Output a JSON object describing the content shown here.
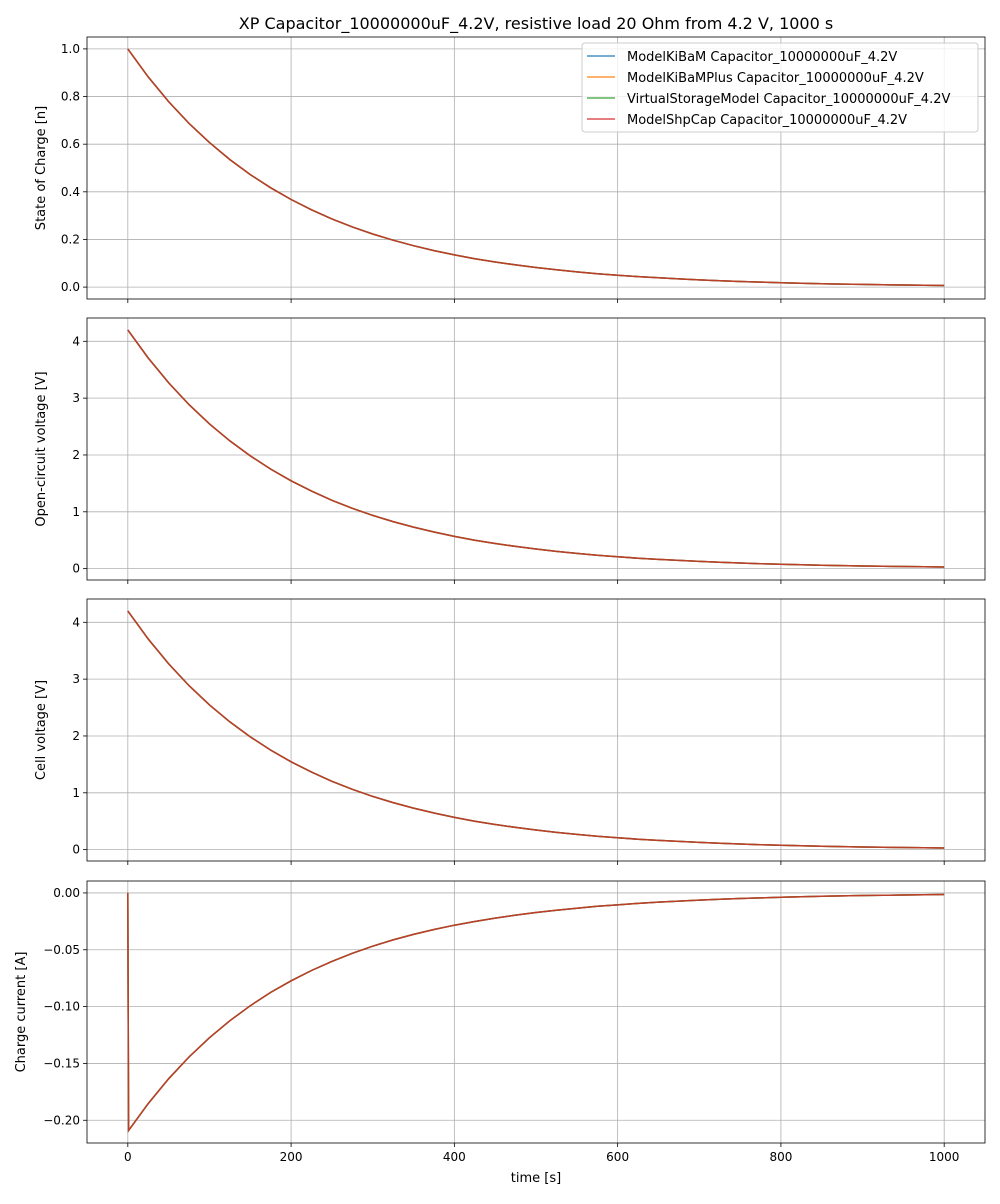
{
  "chart_data": {
    "type": "line",
    "title": "XP Capacitor_10000000uF_4.2V, resistive load 20 Ohm from 4.2 V, 1000 s",
    "xlabel": "time [s]",
    "xlim": [
      -50,
      1050
    ],
    "xticks": [
      0,
      200,
      400,
      600,
      800,
      1000
    ],
    "xtick_labels": [
      "0",
      "200",
      "400",
      "600",
      "800",
      "1000"
    ],
    "grid": true,
    "legend": {
      "placement": "top-right",
      "entries": [
        {
          "name": "ModelKiBaM Capacitor_10000000uF_4.2V",
          "color": "#1f77b4"
        },
        {
          "name": "ModelKiBaMPlus Capacitor_10000000uF_4.2V",
          "color": "#ff7f0e"
        },
        {
          "name": "VirtualStorageModel Capacitor_10000000uF_4.2V",
          "color": "#2ca02c"
        },
        {
          "name": "ModelShpCap Capacitor_10000000uF_4.2V",
          "color": "#d62728"
        }
      ]
    },
    "x": [
      0,
      25,
      50,
      75,
      100,
      125,
      150,
      175,
      200,
      225,
      250,
      275,
      300,
      325,
      350,
      375,
      400,
      425,
      450,
      475,
      500,
      525,
      550,
      575,
      600,
      625,
      650,
      675,
      700,
      725,
      750,
      775,
      800,
      825,
      850,
      875,
      900,
      925,
      950,
      975,
      1000
    ],
    "panels": [
      {
        "ylabel": "State of Charge [n]",
        "ylim": [
          -0.05,
          1.05
        ],
        "yticks": [
          0,
          0.2,
          0.4,
          0.6,
          0.8,
          1.0
        ],
        "ytick_labels": [
          "0.0",
          "0.2",
          "0.4",
          "0.6",
          "0.8",
          "1.0"
        ],
        "values": [
          1.0,
          0.8825,
          0.7788,
          0.6873,
          0.6065,
          0.5353,
          0.4724,
          0.4169,
          0.3679,
          0.3247,
          0.2865,
          0.2528,
          0.2231,
          0.1969,
          0.1738,
          0.1534,
          0.1353,
          0.1194,
          0.1054,
          0.093,
          0.0821,
          0.0724,
          0.0639,
          0.0564,
          0.0498,
          0.0439,
          0.0388,
          0.0342,
          0.0302,
          0.0267,
          0.0235,
          0.0208,
          0.0183,
          0.0162,
          0.0143,
          0.0126,
          0.0111,
          0.0098,
          0.0087,
          0.0076,
          0.0067
        ]
      },
      {
        "ylabel": "Open-circuit voltage [V]",
        "ylim": [
          -0.2,
          4.41
        ],
        "yticks": [
          0,
          1,
          2,
          3,
          4
        ],
        "ytick_labels": [
          "0",
          "1",
          "2",
          "3",
          "4"
        ],
        "values": [
          4.2,
          3.707,
          3.271,
          2.887,
          2.547,
          2.248,
          1.984,
          1.751,
          1.545,
          1.364,
          1.203,
          1.062,
          0.937,
          0.827,
          0.73,
          0.644,
          0.568,
          0.501,
          0.443,
          0.391,
          0.345,
          0.304,
          0.268,
          0.237,
          0.209,
          0.184,
          0.163,
          0.144,
          0.127,
          0.112,
          0.099,
          0.087,
          0.077,
          0.068,
          0.06,
          0.053,
          0.047,
          0.041,
          0.037,
          0.032,
          0.028
        ]
      },
      {
        "ylabel": "Cell voltage [V]",
        "ylim": [
          -0.2,
          4.41
        ],
        "yticks": [
          0,
          1,
          2,
          3,
          4
        ],
        "ytick_labels": [
          "0",
          "1",
          "2",
          "3",
          "4"
        ],
        "values": [
          4.2,
          3.707,
          3.271,
          2.887,
          2.547,
          2.248,
          1.984,
          1.751,
          1.545,
          1.364,
          1.203,
          1.062,
          0.937,
          0.827,
          0.73,
          0.644,
          0.568,
          0.501,
          0.443,
          0.391,
          0.345,
          0.304,
          0.268,
          0.237,
          0.209,
          0.184,
          0.163,
          0.144,
          0.127,
          0.112,
          0.099,
          0.087,
          0.077,
          0.068,
          0.06,
          0.053,
          0.047,
          0.041,
          0.037,
          0.032,
          0.028
        ]
      },
      {
        "ylabel": "Charge current [A]",
        "ylim": [
          -0.22,
          0.0105
        ],
        "yticks": [
          0,
          -0.05,
          -0.1,
          -0.15,
          -0.2
        ],
        "ytick_labels": [
          "0.00",
          "−0.05",
          "−0.10",
          "−0.15",
          "−0.20"
        ],
        "x": [
          0,
          1,
          25,
          50,
          75,
          100,
          125,
          150,
          175,
          200,
          225,
          250,
          275,
          300,
          325,
          350,
          375,
          400,
          425,
          450,
          475,
          500,
          525,
          550,
          575,
          600,
          625,
          650,
          675,
          700,
          725,
          750,
          775,
          800,
          825,
          850,
          875,
          900,
          925,
          950,
          975,
          1000
        ],
        "values": [
          0,
          -0.209,
          -0.1853,
          -0.1635,
          -0.1443,
          -0.1274,
          -0.1124,
          -0.0992,
          -0.0875,
          -0.0773,
          -0.0682,
          -0.0602,
          -0.0531,
          -0.0469,
          -0.0413,
          -0.0365,
          -0.0322,
          -0.0284,
          -0.0251,
          -0.0221,
          -0.0195,
          -0.0172,
          -0.0152,
          -0.0134,
          -0.0118,
          -0.0105,
          -0.0092,
          -0.0081,
          -0.0072,
          -0.0063,
          -0.0056,
          -0.0049,
          -0.0044,
          -0.0038,
          -0.0034,
          -0.003,
          -0.0026,
          -0.0023,
          -0.0021,
          -0.0018,
          -0.0016,
          -0.0014
        ]
      }
    ]
  }
}
